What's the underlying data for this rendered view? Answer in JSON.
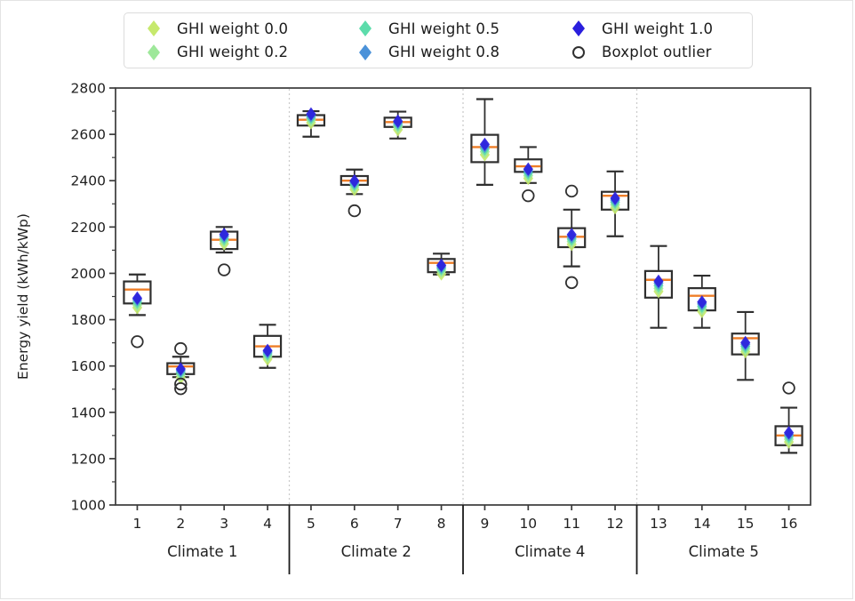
{
  "chart_data": {
    "type": "boxplot",
    "ylabel": "Energy yield (kWh/kWp)",
    "ylim": [
      1000,
      2800
    ],
    "ytick_step": 200,
    "ytick_minor_step": 100,
    "grid": false,
    "legend_position": "top",
    "legend": [
      {
        "label": "GHI weight 0.0",
        "marker": "diamond",
        "color": "#c6e96d"
      },
      {
        "label": "GHI weight 0.2",
        "marker": "diamond",
        "color": "#9ee89a"
      },
      {
        "label": "GHI weight 0.5",
        "marker": "diamond",
        "color": "#5cdcab"
      },
      {
        "label": "GHI weight 0.8",
        "marker": "diamond",
        "color": "#4b92d9"
      },
      {
        "label": "GHI weight 1.0",
        "marker": "diamond",
        "color": "#2a1edd"
      },
      {
        "label": "Boxplot outlier",
        "marker": "open-circle",
        "color": "#2f2f2f"
      }
    ],
    "marker_series": [
      "GHI weight 0.0",
      "GHI weight 0.2",
      "GHI weight 0.5",
      "GHI weight 0.8",
      "GHI weight 1.0"
    ],
    "marker_colors": [
      "#c6e96d",
      "#9ee89a",
      "#5cdcab",
      "#4b92d9",
      "#2a1edd"
    ],
    "groups": [
      {
        "label": "Climate 1",
        "locations": [
          "1",
          "2",
          "3",
          "4"
        ]
      },
      {
        "label": "Climate 2",
        "locations": [
          "5",
          "6",
          "7",
          "8"
        ]
      },
      {
        "label": "Climate 4",
        "locations": [
          "9",
          "10",
          "11",
          "12"
        ]
      },
      {
        "label": "Climate 5",
        "locations": [
          "13",
          "14",
          "15",
          "16"
        ]
      }
    ],
    "categories": [
      "1",
      "2",
      "3",
      "4",
      "5",
      "6",
      "7",
      "8",
      "9",
      "10",
      "11",
      "12",
      "13",
      "14",
      "15",
      "16"
    ],
    "boxes": [
      {
        "location": "1",
        "whisker_low": 1820,
        "q1": 1870,
        "median": 1930,
        "q3": 1965,
        "whisker_high": 1995,
        "outliers": [
          1705
        ],
        "markers": [
          1852,
          1864,
          1876,
          1886,
          1893
        ]
      },
      {
        "location": "2",
        "whisker_low": 1552,
        "q1": 1565,
        "median": 1598,
        "q3": 1612,
        "whisker_high": 1640,
        "outliers": [
          1675,
          1522,
          1502
        ],
        "markers": [
          1550,
          1562,
          1572,
          1580,
          1587
        ]
      },
      {
        "location": "3",
        "whisker_low": 2090,
        "q1": 2105,
        "median": 2145,
        "q3": 2180,
        "whisker_high": 2200,
        "outliers": [
          2015
        ],
        "markers": [
          2128,
          2140,
          2150,
          2160,
          2168
        ]
      },
      {
        "location": "4",
        "whisker_low": 1592,
        "q1": 1640,
        "median": 1685,
        "q3": 1730,
        "whisker_high": 1778,
        "outliers": [],
        "markers": [
          1630,
          1642,
          1652,
          1660,
          1667
        ]
      },
      {
        "location": "5",
        "whisker_low": 2590,
        "q1": 2638,
        "median": 2663,
        "q3": 2683,
        "whisker_high": 2700,
        "outliers": [],
        "markers": [
          2650,
          2662,
          2672,
          2680,
          2688
        ]
      },
      {
        "location": "6",
        "whisker_low": 2342,
        "q1": 2382,
        "median": 2400,
        "q3": 2420,
        "whisker_high": 2448,
        "outliers": [
          2270
        ],
        "markers": [
          2362,
          2374,
          2384,
          2392,
          2399
        ]
      },
      {
        "location": "7",
        "whisker_low": 2582,
        "q1": 2632,
        "median": 2653,
        "q3": 2672,
        "whisker_high": 2698,
        "outliers": [],
        "markers": [
          2620,
          2632,
          2642,
          2650,
          2657
        ]
      },
      {
        "location": "8",
        "whisker_low": 1995,
        "q1": 2005,
        "median": 2045,
        "q3": 2062,
        "whisker_high": 2085,
        "outliers": [],
        "markers": [
          1998,
          2010,
          2020,
          2028,
          2035
        ]
      },
      {
        "location": "9",
        "whisker_low": 2382,
        "q1": 2480,
        "median": 2545,
        "q3": 2598,
        "whisker_high": 2752,
        "outliers": [],
        "markers": [
          2512,
          2525,
          2537,
          2548,
          2557
        ]
      },
      {
        "location": "10",
        "whisker_low": 2390,
        "q1": 2438,
        "median": 2462,
        "q3": 2492,
        "whisker_high": 2545,
        "outliers": [
          2335
        ],
        "markers": [
          2410,
          2422,
          2433,
          2442,
          2450
        ]
      },
      {
        "location": "11",
        "whisker_low": 2030,
        "q1": 2113,
        "median": 2158,
        "q3": 2195,
        "whisker_high": 2275,
        "outliers": [
          2355,
          1960
        ],
        "markers": [
          2125,
          2138,
          2148,
          2158,
          2167
        ]
      },
      {
        "location": "12",
        "whisker_low": 2160,
        "q1": 2275,
        "median": 2335,
        "q3": 2352,
        "whisker_high": 2440,
        "outliers": [],
        "markers": [
          2283,
          2296,
          2307,
          2316,
          2324
        ]
      },
      {
        "location": "13",
        "whisker_low": 1765,
        "q1": 1895,
        "median": 1972,
        "q3": 2010,
        "whisker_high": 2118,
        "outliers": [],
        "markers": [
          1922,
          1935,
          1947,
          1958,
          1966
        ]
      },
      {
        "location": "14",
        "whisker_low": 1765,
        "q1": 1840,
        "median": 1903,
        "q3": 1936,
        "whisker_high": 1990,
        "outliers": [],
        "markers": [
          1835,
          1848,
          1858,
          1868,
          1876
        ]
      },
      {
        "location": "15",
        "whisker_low": 1540,
        "q1": 1650,
        "median": 1720,
        "q3": 1740,
        "whisker_high": 1833,
        "outliers": [],
        "markers": [
          1662,
          1674,
          1684,
          1693,
          1701
        ]
      },
      {
        "location": "16",
        "whisker_low": 1225,
        "q1": 1258,
        "median": 1300,
        "q3": 1340,
        "whisker_high": 1420,
        "outliers": [
          1505
        ],
        "markers": [
          1272,
          1284,
          1295,
          1304,
          1312
        ]
      }
    ],
    "style": {
      "box_edge_color": "#2f2f2f",
      "median_color": "#ee7e28",
      "whisker_color": "#2f2f2f",
      "outlier_edge_color": "#2f2f2f",
      "group_divider_color": "#cccccc",
      "group_separator_color": "#1a1a1a"
    }
  }
}
